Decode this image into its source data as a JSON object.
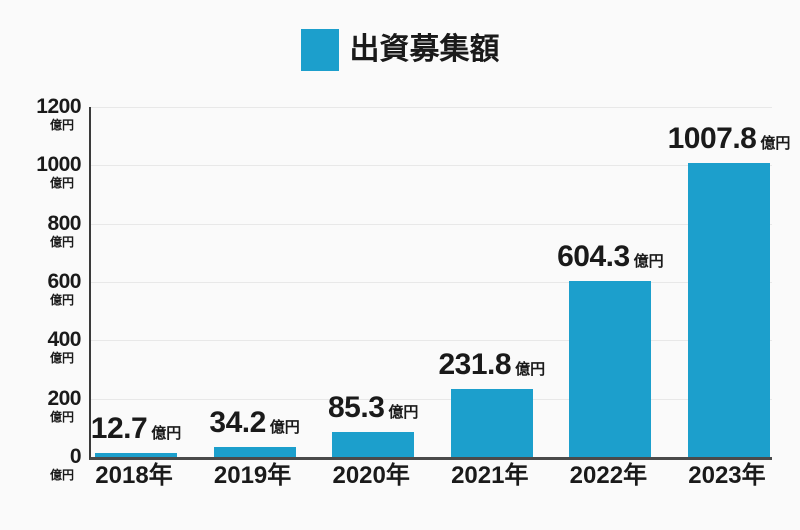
{
  "colors": {
    "background": "#fafafa",
    "bar": "#1C9FCC",
    "text": "#1a1a1a",
    "grid": "#e8e8e8",
    "y_axis": "#3a3a3a",
    "x_axis": "#4a4a4a"
  },
  "legend": {
    "swatch_color": "#1C9FCC",
    "label": "出資募集額"
  },
  "chart_data": {
    "type": "bar",
    "title": "出資募集額",
    "unit": "億円",
    "categories": [
      "2018年",
      "2019年",
      "2020年",
      "2021年",
      "2022年",
      "2023年"
    ],
    "values": [
      12.7,
      34.2,
      85.3,
      231.8,
      604.3,
      1007.8
    ],
    "value_labels": [
      "12.7",
      "34.2",
      "85.3",
      "231.8",
      "604.3",
      "1007.8"
    ],
    "xlabel": "",
    "ylabel": "",
    "ylim": [
      0,
      1200
    ],
    "yticks": [
      1200,
      1000,
      800,
      600,
      400,
      200,
      0
    ],
    "ytick_unit": "億円",
    "bar_color": "#1C9FCC",
    "grid": true,
    "legend_position": "top-center"
  }
}
